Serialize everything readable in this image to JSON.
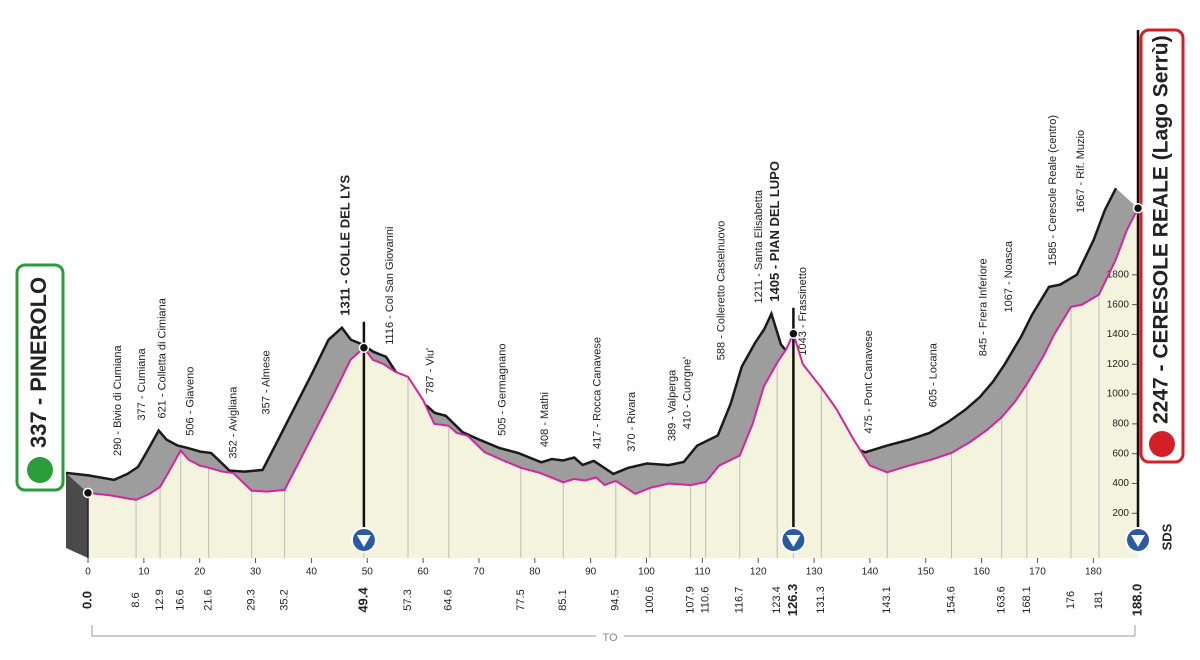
{
  "chart_data": {
    "type": "profile",
    "start": {
      "label": "337 - PINEROLO",
      "km": {
        "value": 0,
        "label": "0.0"
      }
    },
    "finish": {
      "label": "2247 - CERESOLE REALE (Lago Serrù)",
      "km": {
        "value": 188,
        "label": "188.0"
      }
    },
    "waypoints": [
      {
        "km": 8.6,
        "label": "290 - Bivio di Cumiana"
      },
      {
        "km": 12.9,
        "label": "377 - Cumiana"
      },
      {
        "km": 16.6,
        "label": "621 - Colletta di Cimiana"
      },
      {
        "km": 21.6,
        "label": "506 - Giaveno"
      },
      {
        "km": 29.3,
        "label": "352 - Avigliana"
      },
      {
        "km": 35.2,
        "label": "357 - Almese"
      },
      {
        "km": 49.4,
        "label": "1311 - COLLE DEL LYS",
        "climb": true
      },
      {
        "km": 57.3,
        "label": "1116 - Col San Giovanni"
      },
      {
        "km": 64.6,
        "label": "787 - Viu'"
      },
      {
        "km": 77.5,
        "label": "505 - Germagnano"
      },
      {
        "km": 85.1,
        "label": "408 - Mathi"
      },
      {
        "km": 94.5,
        "label": "417 - Rocca Canavese"
      },
      {
        "km": 100.6,
        "label": "370 - Rivara"
      },
      {
        "km": 107.9,
        "label": "389 - Valperga"
      },
      {
        "km": 110.6,
        "label": "410 - Cuorgne'"
      },
      {
        "km": 116.7,
        "label": "588 - Colleretto Castelnuovo"
      },
      {
        "km": 123.4,
        "label": "1211 - Santa Elisabetta"
      },
      {
        "km": 126.3,
        "label": "1405 - PIAN DEL LUPO",
        "climb": true
      },
      {
        "km": 131.3,
        "label": "1043 - Frassinetto"
      },
      {
        "km": 143.1,
        "label": "475 - Pont Canavese"
      },
      {
        "km": 154.6,
        "label": "605 - Locana"
      },
      {
        "km": 163.6,
        "label": "845 - Frera Inferiore"
      },
      {
        "km": 168.1,
        "label": "1067 - Noasca"
      },
      {
        "km": 176.0,
        "label": "1585 - Ceresole Reale (centro)"
      },
      {
        "km": 181.0,
        "label": "1667 - Rif. Muzio"
      }
    ],
    "x": [
      0,
      4,
      8.6,
      11,
      12.9,
      14.5,
      16.6,
      18,
      20,
      21.6,
      24,
      26,
      29.3,
      32,
      35.2,
      38,
      41,
      44,
      47,
      49.4,
      51,
      53,
      55,
      57.3,
      60,
      62,
      64.6,
      66,
      68,
      71,
      74,
      77.5,
      81,
      85.1,
      87,
      89,
      91,
      92.5,
      94.5,
      96,
      98,
      100.6,
      104,
      107.9,
      110.6,
      113,
      116.7,
      119,
      121,
      123.4,
      125,
      126.3,
      128,
      131.3,
      134,
      137,
      140,
      143.1,
      147,
      151,
      154.6,
      158,
      161,
      163.6,
      166,
      168.1,
      171,
      173,
      176,
      178,
      181,
      184,
      186,
      188
    ],
    "values": [
      337,
      320,
      290,
      330,
      377,
      480,
      621,
      560,
      520,
      506,
      480,
      470,
      352,
      345,
      357,
      560,
      780,
      1000,
      1230,
      1311,
      1230,
      1200,
      1150,
      1116,
      960,
      800,
      787,
      740,
      720,
      610,
      560,
      505,
      470,
      408,
      430,
      420,
      440,
      390,
      417,
      380,
      330,
      370,
      400,
      389,
      410,
      520,
      588,
      800,
      1050,
      1211,
      1300,
      1405,
      1200,
      1043,
      900,
      700,
      520,
      475,
      520,
      560,
      605,
      680,
      760,
      845,
      950,
      1067,
      1250,
      1400,
      1585,
      1600,
      1667,
      1900,
      2100,
      2247
    ],
    "xlim": [
      0,
      188
    ],
    "ylim": [
      -100,
      2500
    ],
    "xticks": [
      0,
      10,
      20,
      30,
      40,
      50,
      60,
      70,
      80,
      90,
      100,
      110,
      120,
      130,
      140,
      150,
      160,
      170,
      180
    ],
    "yticks": [
      200,
      400,
      600,
      800,
      1000,
      1200,
      1400,
      1600,
      1800
    ],
    "line_color": "#d6249f",
    "fill_color": "#f4f3dd",
    "band_color": "#9d9d9d",
    "province": "TO",
    "logo": "SDS"
  }
}
